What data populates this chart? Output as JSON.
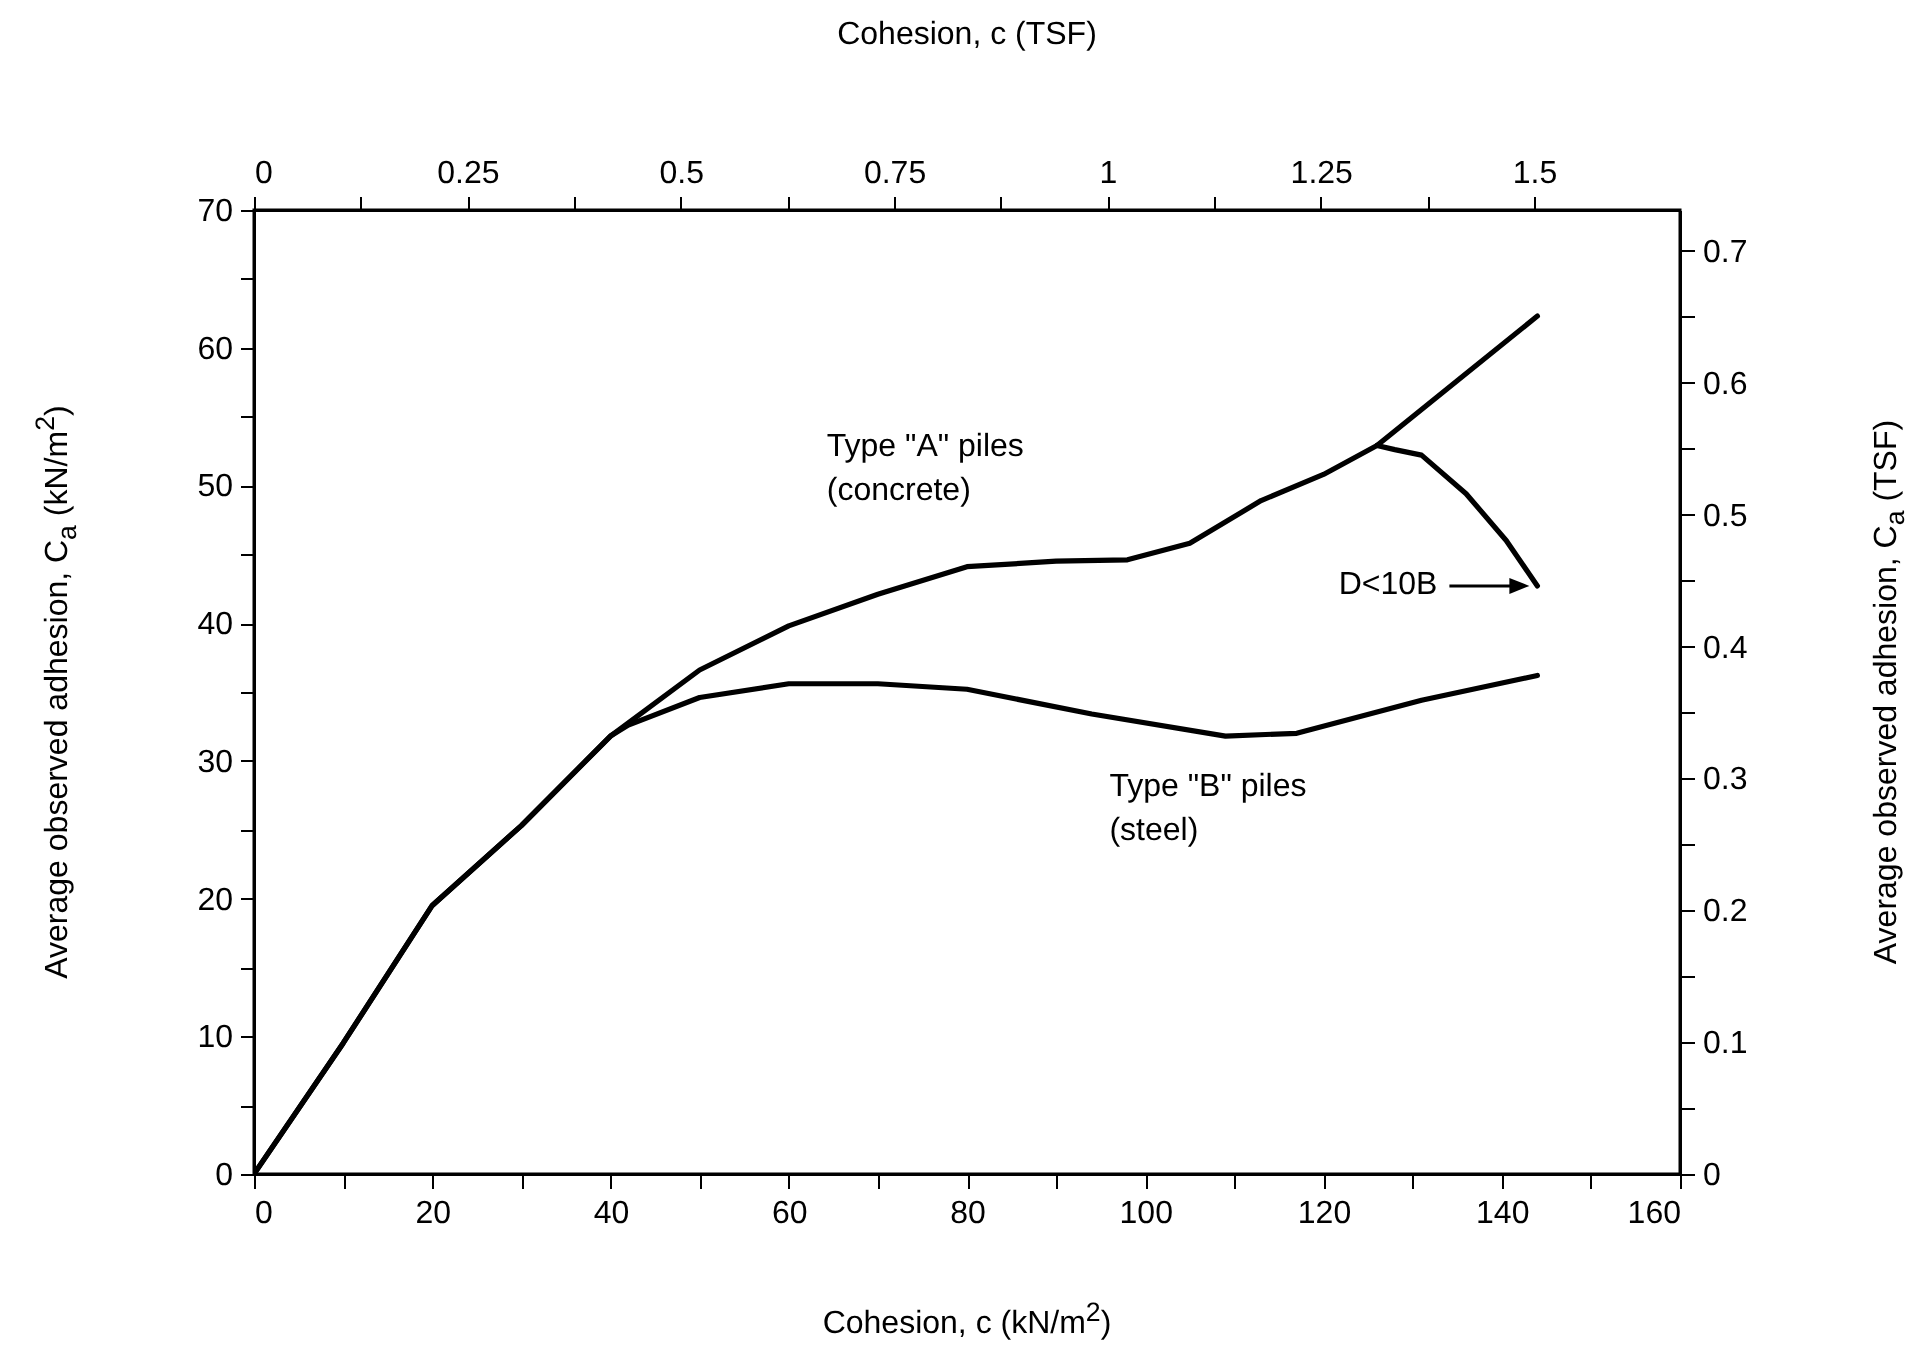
{
  "chart_data": {
    "type": "line",
    "xlabel": "Cohesion, c (kN/m$^{2}$)",
    "ylabel": "Average observed adhesion, C$_{a}$ (kN/m$^{2}$)",
    "x2label": "Cohesion, c (TSF)",
    "y2label": "Average observed adhesion, C$_{a}$ (TSF)",
    "xlim": [
      0,
      160
    ],
    "xticks": [
      0,
      {
        "value": 10,
        "label": null
      },
      20,
      {
        "value": 30,
        "label": null
      },
      40,
      {
        "value": 50,
        "label": null
      },
      60,
      {
        "value": 70,
        "label": null
      },
      80,
      {
        "value": 90,
        "label": null
      },
      100,
      {
        "value": 110,
        "label": null
      },
      120,
      {
        "value": 130,
        "label": null
      },
      140,
      {
        "value": 150,
        "label": null
      },
      160
    ],
    "ylim": [
      0,
      70
    ],
    "yticks": [
      0,
      {
        "value": 5,
        "label": null
      },
      10,
      {
        "value": 15,
        "label": null
      },
      20,
      {
        "value": 25,
        "label": null
      },
      30,
      {
        "value": 35,
        "label": null
      },
      40,
      {
        "value": 45,
        "label": null
      },
      50,
      {
        "value": 55,
        "label": null
      },
      60,
      {
        "value": 65,
        "label": null
      },
      70
    ],
    "x2lim": [
      0,
      1.671
    ],
    "x2ticks": [
      0,
      {
        "value": 0.125,
        "label": null
      },
      0.25,
      {
        "value": 0.375,
        "label": null
      },
      0.5,
      {
        "value": 0.625,
        "label": null
      },
      0.75,
      {
        "value": 0.875,
        "label": null
      },
      1,
      {
        "value": 1.125,
        "label": null
      },
      1.25,
      {
        "value": 1.375,
        "label": null
      },
      1.5
    ],
    "y2lim": [
      0,
      0.731
    ],
    "y2ticks": [
      0,
      {
        "value": 0.05,
        "label": null
      },
      0.1,
      {
        "value": 0.15,
        "label": null
      },
      0.2,
      {
        "value": 0.25,
        "label": null
      },
      0.3,
      {
        "value": 0.35,
        "label": null
      },
      0.4,
      {
        "value": 0.45,
        "label": null
      },
      0.5,
      {
        "value": 0.55,
        "label": null
      },
      0.6,
      {
        "value": 0.65,
        "label": null
      },
      0.7
    ],
    "grid": false,
    "line_style": "solid",
    "series": [
      {
        "name": "Type \"A\" piles\n(concrete)",
        "color": "#000000",
        "x": [
          0,
          10,
          20,
          30,
          40,
          50,
          60,
          70,
          80,
          90,
          98,
          105,
          113,
          120,
          126,
          135,
          144
        ],
        "values": [
          0,
          9.5,
          19.5,
          25.3,
          31.8,
          36.6,
          39.8,
          42.1,
          44.1,
          44.5,
          44.6,
          45.8,
          48.9,
          50.8,
          52.9,
          57.6,
          62.3
        ]
      },
      {
        "name": "Type \"B\" piles\n(steel)",
        "color": "#000000",
        "x": [
          0,
          10,
          20,
          30,
          40,
          42,
          50,
          60,
          70,
          80,
          94,
          109,
          117,
          131,
          144
        ],
        "values": [
          0,
          9.5,
          19.5,
          25.3,
          31.8,
          32.6,
          34.6,
          35.6,
          35.6,
          35.2,
          33.4,
          31.8,
          32,
          34.4,
          36.2
        ]
      },
      {
        "color": "#000000",
        "x": [
          126,
          128,
          131,
          136,
          140.5,
          144
        ],
        "values": [
          52.9,
          52.6,
          52.2,
          49.4,
          46,
          42.7
        ]
      }
    ],
    "annotations": [
      "D<10B"
    ]
  }
}
